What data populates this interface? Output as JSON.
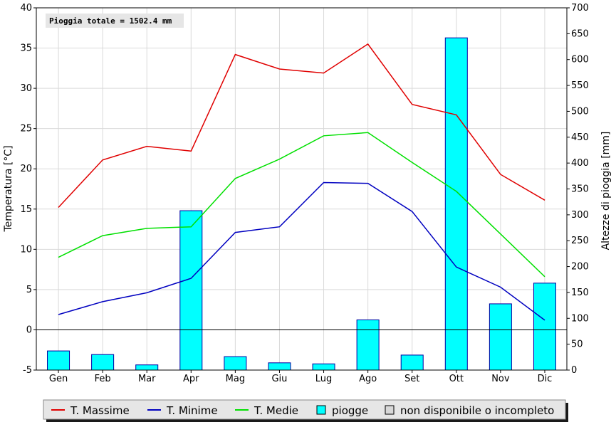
{
  "chart_data": {
    "type": "bar+line",
    "annotation": "Pioggia totale = 1502.4 mm",
    "categories": [
      "Gen",
      "Feb",
      "Mar",
      "Apr",
      "Mag",
      "Giu",
      "Lug",
      "Ago",
      "Set",
      "Ott",
      "Nov",
      "Dic"
    ],
    "ylabel_left": "Temperatura [°C]",
    "ylabel_right": "Altezze di pioggia [mm]",
    "ylim_left": [
      -5,
      40
    ],
    "ylim_right": [
      0,
      700
    ],
    "yticks_left": [
      "-5",
      "0",
      "5",
      "10",
      "15",
      "20",
      "25",
      "30",
      "35",
      "40"
    ],
    "yticks_right": [
      "0",
      "50",
      "100",
      "150",
      "200",
      "250",
      "300",
      "350",
      "400",
      "450",
      "500",
      "550",
      "600",
      "650",
      "700"
    ],
    "grid": true,
    "line_series": [
      {
        "name": "T. Massime",
        "color": "#e00000",
        "values": [
          15.2,
          21.1,
          22.8,
          22.2,
          34.2,
          32.4,
          31.9,
          35.5,
          28.0,
          26.7,
          19.3,
          16.1
        ]
      },
      {
        "name": "T. Minime",
        "color": "#0000c0",
        "values": [
          1.9,
          3.5,
          4.6,
          6.4,
          12.1,
          12.8,
          18.3,
          18.2,
          14.7,
          7.8,
          5.3,
          1.2
        ]
      },
      {
        "name": "T. Medie",
        "color": "#00e000",
        "values": [
          9.0,
          11.7,
          12.6,
          12.8,
          18.8,
          21.2,
          24.1,
          24.5,
          20.8,
          17.2,
          11.9,
          6.6
        ]
      }
    ],
    "bar_series": {
      "name": "piogge",
      "color": "#00ffff",
      "values": [
        37,
        30,
        10,
        308,
        26,
        14,
        12,
        97,
        29,
        642,
        128,
        168
      ]
    },
    "legend": [
      {
        "label": "T. Massime",
        "kind": "line",
        "color": "#e00000"
      },
      {
        "label": "T. Minime",
        "kind": "line",
        "color": "#0000c0"
      },
      {
        "label": "T. Medie",
        "kind": "line",
        "color": "#00e000"
      },
      {
        "label": "piogge",
        "kind": "box",
        "color": "#00ffff"
      },
      {
        "label": "non disponibile o incompleto",
        "kind": "box",
        "color": "#d8d8d8"
      }
    ],
    "legend_position": "bottom"
  }
}
